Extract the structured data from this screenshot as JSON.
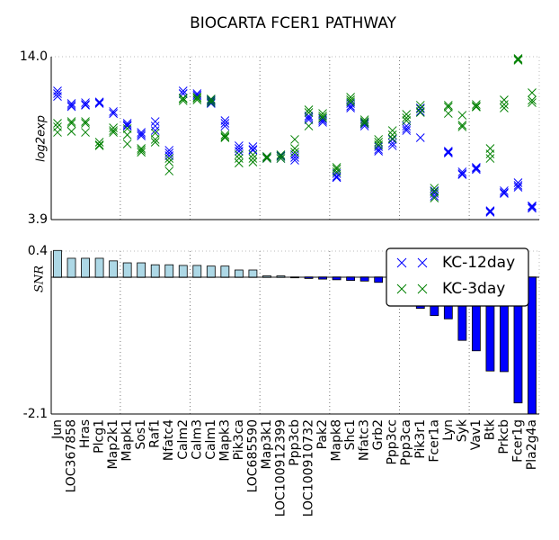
{
  "chart_data": [
    {
      "type": "scatter",
      "title": "BIOCARTA FCER1 PATHWAY",
      "ylabel": "log2exp",
      "ylim": [
        3.9,
        14.0
      ],
      "yticks": [
        3.9,
        {
          "value": 14.0,
          "label": "14.0"
        }
      ],
      "series": [
        {
          "name": "KC-12day",
          "color": "#0000ff",
          "values": [
            [
              11.88,
              11.71,
              11.54
            ],
            [
              11.1,
              10.99,
              10.9
            ],
            [
              11.15,
              11.04,
              10.99
            ],
            [
              11.2,
              11.15,
              11.1
            ],
            [
              10.6,
              10.48,
              10.48
            ],
            [
              9.87,
              9.76,
              9.7
            ],
            [
              9.31,
              9.2,
              9.09
            ],
            [
              9.98,
              9.7,
              9.42
            ],
            [
              8.2,
              8.03,
              7.86
            ],
            [
              11.88,
              11.71,
              11.71
            ],
            [
              11.71,
              11.6,
              11.6
            ],
            [
              11.32,
              11.21,
              11.1
            ],
            [
              10.04,
              9.87,
              9.7
            ],
            [
              8.48,
              8.31,
              8.14
            ],
            [
              8.42,
              8.25,
              8.2
            ],
            [
              7.81,
              7.75,
              7.69
            ],
            [
              7.86,
              7.81,
              7.69
            ],
            [
              7.92,
              7.75,
              7.58
            ],
            [
              10.32,
              10.21,
              10.09
            ],
            [
              10.15,
              10.04,
              9.93
            ],
            [
              6.75,
              6.58,
              6.5
            ],
            [
              11.1,
              10.93,
              10.82
            ],
            [
              9.93,
              9.82,
              9.7
            ],
            [
              8.42,
              8.25,
              8.14
            ],
            [
              8.87,
              8.64,
              8.48
            ],
            [
              9.7,
              9.54,
              9.42
            ],
            [
              10.82,
              10.6,
              8.98
            ],
            [
              5.69,
              5.52,
              5.35
            ],
            [
              8.08,
              8.03,
              8.14
            ],
            [
              6.86,
              6.75,
              6.69
            ],
            [
              7.08,
              7.0,
              7.14
            ],
            [
              4.4,
              4.45,
              4.35
            ],
            [
              5.69,
              5.52,
              5.58
            ],
            [
              6.19,
              6.02,
              5.91
            ],
            [
              4.68,
              4.6,
              4.75
            ]
          ]
        },
        {
          "name": "KC-3day",
          "color": "#008000",
          "values": [
            [
              9.87,
              9.65,
              9.31
            ],
            [
              9.98,
              9.87,
              9.37
            ],
            [
              9.98,
              9.87,
              9.31
            ],
            [
              8.7,
              8.53,
              8.48
            ],
            [
              9.59,
              9.42,
              9.31
            ],
            [
              9.54,
              9.15,
              8.59
            ],
            [
              8.31,
              8.2,
              8.08
            ],
            [
              9.26,
              8.87,
              8.7
            ],
            [
              7.69,
              7.47,
              6.91
            ],
            [
              11.43,
              11.38,
              11.27
            ],
            [
              11.49,
              11.32,
              11.43
            ],
            [
              11.38,
              11.27,
              11.15
            ],
            [
              9.15,
              8.98,
              9.04
            ],
            [
              7.92,
              7.69,
              7.41
            ],
            [
              7.92,
              7.69,
              7.47
            ],
            [
              7.81,
              7.75,
              7.69
            ],
            [
              7.92,
              7.81,
              7.69
            ],
            [
              8.87,
              8.31,
              8.08
            ],
            [
              10.71,
              10.54,
              9.7
            ],
            [
              10.48,
              10.32,
              10.21
            ],
            [
              7.14,
              7.03,
              6.86
            ],
            [
              11.49,
              11.32,
              11.2
            ],
            [
              10.09,
              9.98,
              9.87
            ],
            [
              8.87,
              8.7,
              8.53
            ],
            [
              9.42,
              9.15,
              8.92
            ],
            [
              10.43,
              10.21,
              10.04
            ],
            [
              10.99,
              10.76,
              10.54
            ],
            [
              5.85,
              5.63,
              5.24
            ],
            [
              10.99,
              10.88,
              10.48
            ],
            [
              10.37,
              9.76,
              9.65
            ],
            [
              11.04,
              10.88,
              10.93
            ],
            [
              8.31,
              7.97,
              7.69
            ],
            [
              11.32,
              11.04,
              10.82
            ],
            [
              13.89,
              13.78,
              13.83
            ],
            [
              11.77,
              11.15,
              11.3
            ]
          ]
        }
      ]
    },
    {
      "type": "bar",
      "ylabel": "SNR",
      "ylim": [
        -2.1,
        0.4
      ],
      "yticks": [
        0.4,
        -2.1
      ],
      "positive_color": "#add8e6",
      "negative_color": "#0000ff",
      "legend": "upper right",
      "categories": [
        "Jun",
        "LOC367858",
        "Hras",
        "Plcg1",
        "Map2k1",
        "Mapk1",
        "Sos1",
        "Raf1",
        "Nfatc4",
        "Calm2",
        "Calm3",
        "Calm1",
        "Mapk3",
        "Pik3ca",
        "LOC685590",
        "Map3k1",
        "LOC100912399",
        "Ppp3cb",
        "LOC100910732",
        "Pak2",
        "Mapk8",
        "Shc1",
        "Nfatc3",
        "Grb2",
        "Ppp3cc",
        "Ppp3ca",
        "Pik3r1",
        "Fcer1a",
        "Lyn",
        "Syk",
        "Vav1",
        "Btk",
        "Prkcb",
        "Fcer1g",
        "Pla2g4a"
      ],
      "values": [
        0.41,
        0.29,
        0.29,
        0.29,
        0.25,
        0.22,
        0.22,
        0.19,
        0.19,
        0.18,
        0.18,
        0.17,
        0.17,
        0.11,
        0.11,
        0.02,
        0.02,
        -0.01,
        -0.02,
        -0.03,
        -0.04,
        -0.05,
        -0.06,
        -0.08,
        -0.12,
        -0.15,
        -0.48,
        -0.59,
        -0.64,
        -0.97,
        -1.13,
        -1.44,
        -1.45,
        -1.93,
        -2.1
      ]
    }
  ]
}
